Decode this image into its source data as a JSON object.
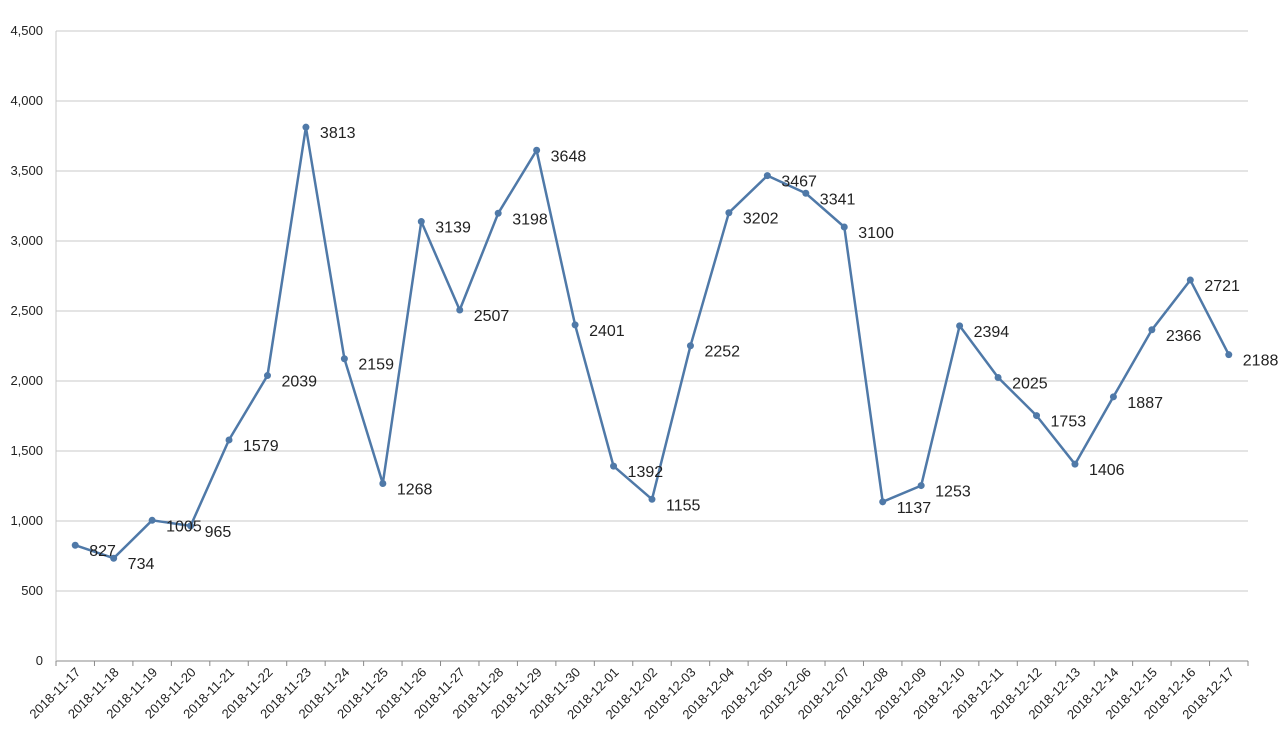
{
  "chart_data": {
    "type": "line",
    "title": "",
    "xlabel": "",
    "ylabel": "",
    "ylim": [
      0,
      4500
    ],
    "y_ticks": [
      0,
      500,
      1000,
      1500,
      2000,
      2500,
      3000,
      3500,
      4000,
      4500
    ],
    "y_tick_labels": [
      "0",
      "500",
      "1,000",
      "1,500",
      "2,000",
      "2,500",
      "3,000",
      "3,500",
      "4,000",
      "4,500"
    ],
    "grid": true,
    "legend": "none",
    "x": [
      "2018-11-17",
      "2018-11-18",
      "2018-11-19",
      "2018-11-20",
      "2018-11-21",
      "2018-11-22",
      "2018-11-23",
      "2018-11-24",
      "2018-11-25",
      "2018-11-26",
      "2018-11-27",
      "2018-11-28",
      "2018-11-29",
      "2018-11-30",
      "2018-12-01",
      "2018-12-02",
      "2018-12-03",
      "2018-12-04",
      "2018-12-05",
      "2018-12-06",
      "2018-12-07",
      "2018-12-08",
      "2018-12-09",
      "2018-12-10",
      "2018-12-11",
      "2018-12-12",
      "2018-12-13",
      "2018-12-14",
      "2018-12-15",
      "2018-12-16",
      "2018-12-17"
    ],
    "series": [
      {
        "color": "#4f79a8",
        "values": [
          827,
          734,
          1005,
          965,
          1579,
          2039,
          3813,
          2159,
          1268,
          3139,
          2507,
          3198,
          3648,
          2401,
          1392,
          1155,
          2252,
          3202,
          3467,
          3341,
          3100,
          1137,
          1253,
          2394,
          2025,
          1753,
          1406,
          1887,
          2366,
          2721,
          2188
        ],
        "data_labels": [
          "827",
          "734",
          "1005",
          "965",
          "1579",
          "2039",
          "3813",
          "2159",
          "1268",
          "3139",
          "2507",
          "3198",
          "3648",
          "2401",
          "1392",
          "1155",
          "2252",
          "3202",
          "3467",
          "3341",
          "3100",
          "1137",
          "1253",
          "2394",
          "2025",
          "1753",
          "1406",
          "1887",
          "2366",
          "2721",
          "2188"
        ]
      }
    ]
  }
}
